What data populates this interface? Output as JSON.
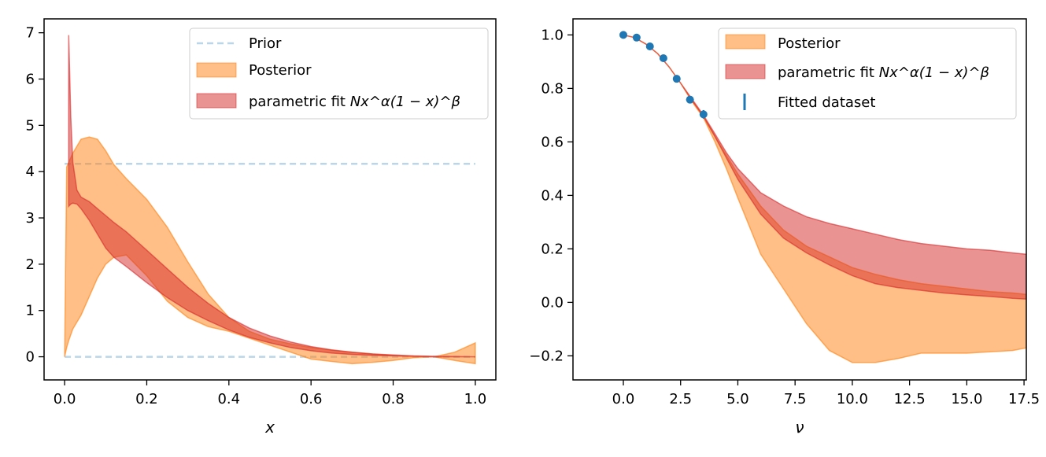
{
  "colors": {
    "prior": "#1f77b4",
    "posterior": "#ff7f0e",
    "parametric": "#d62728",
    "dataset": "#1f77b4"
  },
  "chart_data": [
    {
      "type": "area",
      "xlabel": "x",
      "ylabel": "",
      "xlim": [
        -0.05,
        1.05
      ],
      "ylim": [
        -0.5,
        7.3
      ],
      "xticks": [
        0.0,
        0.2,
        0.4,
        0.6,
        0.8,
        1.0
      ],
      "xtick_labels": [
        "0.0",
        "0.2",
        "0.4",
        "0.6",
        "0.8",
        "1.0"
      ],
      "yticks": [
        0,
        1,
        2,
        3,
        4,
        5,
        6,
        7
      ],
      "ytick_labels": [
        "0",
        "1",
        "2",
        "3",
        "4",
        "5",
        "6",
        "7"
      ],
      "legend": {
        "position": "top-right",
        "entries": [
          "Prior",
          "Posterior",
          "parametric fit"
        ],
        "formula": "Nx^α(1 − x)^β"
      },
      "series": [
        {
          "name": "Prior",
          "kind": "band-dashed",
          "x": [
            0.0,
            1.0
          ],
          "lower": [
            0.0,
            0.0
          ],
          "upper": [
            4.17,
            4.17
          ]
        },
        {
          "name": "Posterior",
          "kind": "band",
          "x": [
            0.0,
            0.005,
            0.01,
            0.02,
            0.04,
            0.06,
            0.08,
            0.1,
            0.12,
            0.15,
            0.2,
            0.25,
            0.3,
            0.35,
            0.4,
            0.45,
            0.5,
            0.55,
            0.6,
            0.65,
            0.7,
            0.75,
            0.8,
            0.85,
            0.9,
            0.95,
            1.0
          ],
          "lower": [
            0.0,
            0.2,
            0.35,
            0.6,
            0.9,
            1.3,
            1.7,
            2.0,
            2.15,
            2.2,
            1.75,
            1.2,
            0.85,
            0.65,
            0.55,
            0.4,
            0.25,
            0.1,
            -0.05,
            -0.1,
            -0.15,
            -0.12,
            -0.08,
            -0.02,
            0.0,
            -0.08,
            -0.15
          ],
          "upper": [
            0.0,
            4.1,
            4.2,
            4.4,
            4.7,
            4.75,
            4.7,
            4.45,
            4.15,
            3.85,
            3.4,
            2.8,
            2.05,
            1.35,
            0.85,
            0.55,
            0.38,
            0.28,
            0.2,
            0.14,
            0.1,
            0.06,
            0.03,
            0.01,
            0.0,
            0.1,
            0.3
          ]
        },
        {
          "name": "parametric fit",
          "kind": "band",
          "x": [
            0.01,
            0.015,
            0.02,
            0.03,
            0.04,
            0.06,
            0.08,
            0.1,
            0.12,
            0.15,
            0.2,
            0.25,
            0.3,
            0.35,
            0.4,
            0.45,
            0.5,
            0.55,
            0.6,
            0.65,
            0.7,
            0.75,
            0.8,
            0.85,
            0.9,
            0.95,
            1.0
          ],
          "lower": [
            3.25,
            3.3,
            3.32,
            3.3,
            3.2,
            2.95,
            2.65,
            2.35,
            2.15,
            1.95,
            1.6,
            1.28,
            1.0,
            0.78,
            0.58,
            0.42,
            0.3,
            0.2,
            0.13,
            0.08,
            0.05,
            0.03,
            0.02,
            0.01,
            0.0,
            0.0,
            0.0
          ],
          "upper": [
            6.95,
            5.2,
            4.2,
            3.6,
            3.45,
            3.35,
            3.2,
            3.05,
            2.9,
            2.7,
            2.3,
            1.9,
            1.5,
            1.15,
            0.85,
            0.62,
            0.45,
            0.32,
            0.22,
            0.15,
            0.1,
            0.06,
            0.04,
            0.02,
            0.01,
            0.005,
            0.0
          ]
        }
      ]
    },
    {
      "type": "area",
      "xlabel": "ν",
      "ylabel": "",
      "xlim": [
        -2.2,
        17.6
      ],
      "ylim": [
        -0.29,
        1.06
      ],
      "xticks": [
        0.0,
        2.5,
        5.0,
        7.5,
        10.0,
        12.5,
        15.0,
        17.5
      ],
      "xtick_labels": [
        "0.0",
        "2.5",
        "5.0",
        "7.5",
        "10.0",
        "12.5",
        "15.0",
        "17.5"
      ],
      "yticks": [
        -0.2,
        0.0,
        0.2,
        0.4,
        0.6,
        0.8,
        1.0
      ],
      "ytick_labels": [
        "−0.2",
        "0.0",
        "0.2",
        "0.4",
        "0.6",
        "0.8",
        "1.0"
      ],
      "legend": {
        "position": "top-right",
        "entries": [
          "Posterior",
          "parametric fit",
          "Fitted dataset"
        ],
        "formula": "Nx^α(1 − x)^β"
      },
      "series": [
        {
          "name": "Posterior",
          "kind": "band",
          "x": [
            0,
            0.5,
            1,
            1.5,
            2,
            2.5,
            3,
            3.5,
            4,
            4.5,
            5,
            6,
            7,
            8,
            9,
            10,
            11,
            12,
            13,
            14,
            15,
            16,
            17,
            17.6
          ],
          "lower": [
            1.0,
            0.99,
            0.965,
            0.93,
            0.88,
            0.82,
            0.75,
            0.69,
            0.6,
            0.5,
            0.39,
            0.18,
            0.05,
            -0.08,
            -0.18,
            -0.225,
            -0.225,
            -0.21,
            -0.19,
            -0.19,
            -0.19,
            -0.185,
            -0.18,
            -0.17
          ],
          "upper": [
            1.0,
            0.99,
            0.965,
            0.93,
            0.88,
            0.82,
            0.755,
            0.695,
            0.62,
            0.55,
            0.48,
            0.36,
            0.27,
            0.21,
            0.17,
            0.13,
            0.105,
            0.085,
            0.07,
            0.06,
            0.05,
            0.04,
            0.035,
            0.03
          ]
        },
        {
          "name": "parametric fit",
          "kind": "band",
          "x": [
            0,
            0.5,
            1,
            1.5,
            2,
            2.5,
            3,
            3.5,
            4,
            4.5,
            5,
            6,
            7,
            8,
            9,
            10,
            11,
            12,
            13,
            14,
            15,
            16,
            17,
            17.6
          ],
          "lower": [
            1.0,
            0.99,
            0.965,
            0.93,
            0.88,
            0.82,
            0.755,
            0.695,
            0.62,
            0.54,
            0.46,
            0.33,
            0.24,
            0.185,
            0.14,
            0.1,
            0.07,
            0.055,
            0.045,
            0.035,
            0.028,
            0.022,
            0.015,
            0.012
          ],
          "upper": [
            1.0,
            0.99,
            0.965,
            0.93,
            0.88,
            0.82,
            0.76,
            0.7,
            0.63,
            0.56,
            0.5,
            0.41,
            0.36,
            0.32,
            0.295,
            0.275,
            0.255,
            0.235,
            0.22,
            0.21,
            0.2,
            0.195,
            0.185,
            0.18
          ]
        },
        {
          "name": "Fitted dataset",
          "kind": "points",
          "x": [
            0.0,
            0.58,
            1.16,
            1.75,
            2.33,
            2.91,
            3.5
          ],
          "y": [
            1.0,
            0.99,
            0.957,
            0.913,
            0.836,
            0.758,
            0.703
          ],
          "err": [
            0.004,
            0.004,
            0.006,
            0.007,
            0.008,
            0.01,
            0.016
          ]
        }
      ]
    }
  ]
}
